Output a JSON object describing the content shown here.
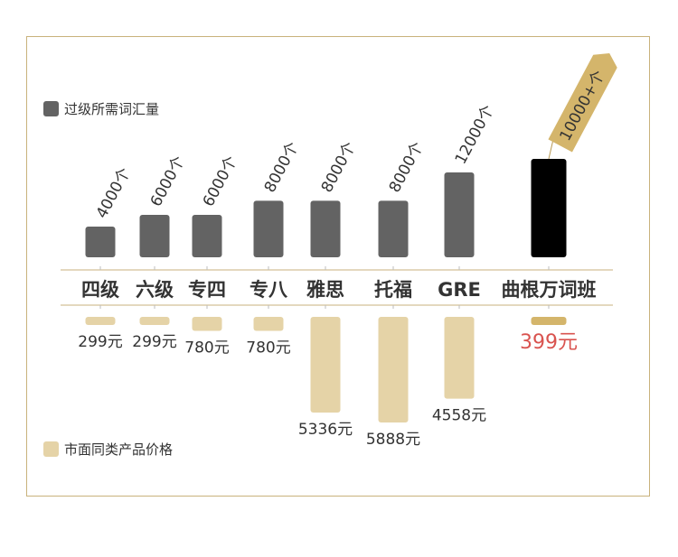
{
  "chart_data": {
    "type": "bar",
    "categories": [
      "四级",
      "六级",
      "专四",
      "专八",
      "雅思",
      "托福",
      "GRE",
      "曲根万词班"
    ],
    "series": [
      {
        "name": "过级所需词汇量",
        "values": [
          4000,
          6000,
          6000,
          8000,
          8000,
          8000,
          12000,
          10000
        ],
        "labels": [
          "4000个",
          "6000个",
          "6000个",
          "8000个",
          "8000个",
          "8000个",
          "12000个",
          "10000+个"
        ],
        "color": "#636363"
      },
      {
        "name": "市面同类产品价格",
        "values": [
          299,
          299,
          780,
          780,
          5336,
          5888,
          4558,
          399
        ],
        "labels": [
          "299元",
          "299元",
          "780元",
          "780元",
          "5336元",
          "5888元",
          "4558元",
          "399元"
        ],
        "color": "#e5d3a7"
      }
    ],
    "legend": [
      "过级所需词汇量",
      "市面同类产品价格"
    ],
    "highlight": {
      "category": "曲根万词班",
      "top_bar_color": "#000000",
      "bottom_bar_color": "#d4b56b",
      "price_label_color": "#d9534f",
      "tag_color": "#d4b56b"
    },
    "colors": {
      "frame": "#c9b27c",
      "axis_line": "#c9b27c",
      "text": "#333333"
    }
  }
}
